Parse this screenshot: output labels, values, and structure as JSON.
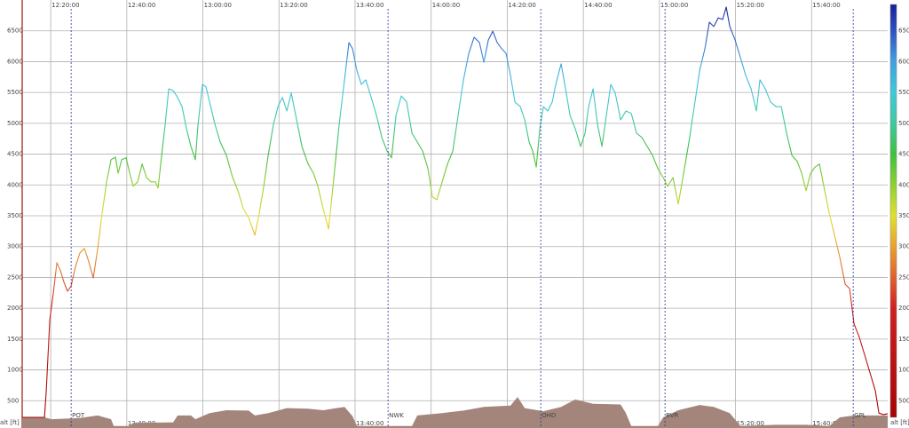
{
  "chart_data": {
    "type": "line",
    "y_label": "alt [ft]",
    "xlim": [
      "12:12:30",
      "16:00:00"
    ],
    "xticks": [
      "12:20:00",
      "12:40:00",
      "13:00:00",
      "13:20:00",
      "13:40:00",
      "14:00:00",
      "14:20:00",
      "14:40:00",
      "15:00:00",
      "15:20:00",
      "15:40:00"
    ],
    "ylim": [
      0,
      7000
    ],
    "yticks": [
      500,
      1000,
      1500,
      2000,
      2500,
      3000,
      3500,
      4000,
      4500,
      5000,
      5500,
      6000,
      6500
    ],
    "grid": true,
    "colorscale": [
      {
        "value": 0,
        "color": "#a00000"
      },
      {
        "value": 2000,
        "color": "#d02020"
      },
      {
        "value": 2600,
        "color": "#e07030"
      },
      {
        "value": 3000,
        "color": "#e8a030"
      },
      {
        "value": 3500,
        "color": "#e0e030"
      },
      {
        "value": 4000,
        "color": "#90d030"
      },
      {
        "value": 4500,
        "color": "#40c040"
      },
      {
        "value": 5000,
        "color": "#40c8a0"
      },
      {
        "value": 5500,
        "color": "#40c8d8"
      },
      {
        "value": 6000,
        "color": "#40a0e0"
      },
      {
        "value": 6500,
        "color": "#3050c0"
      },
      {
        "value": 7000,
        "color": "#101890"
      }
    ],
    "series": [
      {
        "x": [
          "12:12:30",
          "12:18:22",
          "12:18:50",
          "12:19:46",
          "12:20:42",
          "12:21:38",
          "12:22:34",
          "12:23:30",
          "12:24:26",
          "12:25:22",
          "12:26:32",
          "12:27:42",
          "12:28:52",
          "12:30:02",
          "12:31:12",
          "12:32:22",
          "12:33:32",
          "12:34:42",
          "12:35:52",
          "12:37:02",
          "12:37:44",
          "12:38:40",
          "12:39:50",
          "12:40:46",
          "12:41:42",
          "12:42:52",
          "12:44:02",
          "12:45:12",
          "12:46:22",
          "12:47:32",
          "12:48:14",
          "12:49:10",
          "12:50:06",
          "12:51:02",
          "12:52:12",
          "12:53:22",
          "12:54:32",
          "12:55:42",
          "12:56:52",
          "12:58:02",
          "12:58:44",
          "12:59:54",
          "13:00:50",
          "13:01:46",
          "13:03:10",
          "13:04:34",
          "13:06:12",
          "13:07:50",
          "13:09:14",
          "13:10:38",
          "13:12:02",
          "13:13:40",
          "13:14:50",
          "13:16:00",
          "13:17:10",
          "13:18:34",
          "13:19:44",
          "13:20:54",
          "13:22:04",
          "13:23:14",
          "13:24:24",
          "13:26:02",
          "13:27:40",
          "13:29:04",
          "13:30:14",
          "13:31:38",
          "13:33:02",
          "13:34:26",
          "13:35:50",
          "13:37:14",
          "13:38:24",
          "13:39:20",
          "13:40:30",
          "13:41:40",
          "13:42:50",
          "13:44:14",
          "13:45:38",
          "13:47:02",
          "13:48:26",
          "13:49:36",
          "13:50:46",
          "13:52:10",
          "13:53:34",
          "13:54:58",
          "13:56:22",
          "13:57:46",
          "13:59:10",
          "14:00:20",
          "14:01:30",
          "14:02:54",
          "14:04:18",
          "14:05:42",
          "14:07:06",
          "14:08:30",
          "14:09:54",
          "14:11:18",
          "14:12:42",
          "14:13:52",
          "14:15:02",
          "14:16:12",
          "14:17:22",
          "14:18:32",
          "14:19:42",
          "14:20:52",
          "14:22:02",
          "14:23:26",
          "14:24:36",
          "14:25:46",
          "14:26:42",
          "14:27:38",
          "14:28:34",
          "14:29:30",
          "14:30:40",
          "14:31:50",
          "14:32:46",
          "14:34:10",
          "14:35:20",
          "14:36:30",
          "14:37:54",
          "14:39:18",
          "14:40:28",
          "14:41:24",
          "14:42:34",
          "14:43:44",
          "14:44:54",
          "14:46:04",
          "14:47:14",
          "14:48:24",
          "14:49:48",
          "14:51:12",
          "14:52:36",
          "14:54:00",
          "14:55:24",
          "14:56:48",
          "14:58:12",
          "14:59:36",
          "15:01:00",
          "15:02:10",
          "15:03:34",
          "15:04:58",
          "15:06:22",
          "15:07:46",
          "15:09:10",
          "15:10:34",
          "15:11:58",
          "15:13:08",
          "15:14:18",
          "15:15:28",
          "15:16:38",
          "15:17:34",
          "15:18:30",
          "15:19:54",
          "15:21:18",
          "15:22:42",
          "15:24:06",
          "15:25:30",
          "15:26:26",
          "15:27:50",
          "15:29:14",
          "15:30:38",
          "15:32:02",
          "15:33:26",
          "15:34:50",
          "15:36:14",
          "15:37:24",
          "15:38:34",
          "15:39:44",
          "15:40:54",
          "15:42:04",
          "15:43:14",
          "15:44:38",
          "15:46:02",
          "15:47:26",
          "15:48:50",
          "15:50:00",
          "15:51:10",
          "15:52:34",
          "15:53:58",
          "15:55:22",
          "15:56:46",
          "15:57:42",
          "15:58:52",
          "16:00:00"
        ],
        "values": [
          230,
          230,
          660,
          1815,
          2250,
          2740,
          2610,
          2420,
          2275,
          2360,
          2680,
          2900,
          2970,
          2750,
          2490,
          2970,
          3545,
          4050,
          4410,
          4450,
          4190,
          4410,
          4440,
          4190,
          3980,
          4050,
          4340,
          4120,
          4050,
          4050,
          3950,
          4480,
          4985,
          5560,
          5530,
          5420,
          5270,
          4910,
          4625,
          4410,
          4985,
          5630,
          5590,
          5345,
          4985,
          4695,
          4480,
          4120,
          3905,
          3615,
          3470,
          3185,
          3545,
          3975,
          4480,
          4985,
          5270,
          5420,
          5200,
          5490,
          5130,
          4625,
          4340,
          4190,
          3980,
          3615,
          3285,
          4120,
          4985,
          5705,
          6310,
          6210,
          5850,
          5630,
          5705,
          5420,
          5130,
          4770,
          4550,
          4440,
          5130,
          5445,
          5345,
          4840,
          4695,
          4550,
          4265,
          3805,
          3760,
          4050,
          4340,
          4550,
          5130,
          5705,
          6135,
          6395,
          6310,
          5990,
          6350,
          6495,
          6310,
          6210,
          6135,
          5775,
          5345,
          5270,
          5055,
          4695,
          4550,
          4290,
          4910,
          5270,
          5200,
          5345,
          5630,
          5965,
          5560,
          5130,
          4910,
          4625,
          4840,
          5270,
          5560,
          4985,
          4625,
          5130,
          5630,
          5490,
          5055,
          5200,
          5160,
          4840,
          4770,
          4625,
          4480,
          4265,
          4120,
          3975,
          4120,
          3690,
          4190,
          4695,
          5270,
          5850,
          6210,
          6640,
          6570,
          6710,
          6685,
          6885,
          6570,
          6350,
          6065,
          5775,
          5560,
          5200,
          5705,
          5560,
          5345,
          5270,
          5270,
          4840,
          4480,
          4380,
          4190,
          3905,
          4190,
          4290,
          4340,
          3975,
          3545,
          3185,
          2825,
          2390,
          2320,
          1745,
          1525,
          1240,
          950,
          660,
          300,
          275,
          290
        ]
      },
      {
        "color": "#a3857b",
        "x": [
          "12:12:30",
          "12:18:22",
          "12:20:14",
          "12:27:42",
          "12:32:22",
          "12:35:52",
          "12:36:34",
          "12:40:32",
          "12:41:42",
          "12:52:12",
          "12:53:22",
          "12:56:52",
          "12:58:02",
          "13:01:46",
          "13:06:12",
          "13:12:02",
          "13:13:40",
          "13:17:10",
          "13:22:04",
          "13:27:40",
          "13:31:38",
          "13:37:14",
          "13:39:20",
          "13:40:30",
          "13:54:58",
          "13:56:22",
          "14:02:54",
          "14:08:30",
          "14:13:52",
          "14:20:52",
          "14:22:44",
          "14:24:36",
          "14:29:30",
          "14:34:10",
          "14:37:54",
          "14:42:34",
          "14:49:48",
          "14:51:12",
          "14:52:36",
          "14:59:36",
          "15:01:00",
          "15:04:58",
          "15:10:34",
          "15:14:18",
          "15:18:30",
          "15:21:18",
          "15:30:38",
          "15:38:34",
          "15:44:38",
          "15:47:26",
          "15:51:10",
          "16:00:00"
        ],
        "values": [
          230,
          230,
          200,
          220,
          260,
          200,
          90,
          90,
          140,
          150,
          260,
          260,
          200,
          300,
          345,
          340,
          260,
          300,
          380,
          370,
          345,
          400,
          250,
          90,
          90,
          260,
          300,
          340,
          400,
          420,
          560,
          380,
          330,
          400,
          520,
          450,
          440,
          300,
          90,
          90,
          230,
          345,
          430,
          400,
          300,
          90,
          110,
          110,
          90,
          230,
          260,
          260
        ]
      }
    ],
    "markers": [
      {
        "label": "POT",
        "x": "12:25:22"
      },
      {
        "label": "NWK",
        "x": "13:48:40"
      },
      {
        "label": "OHD",
        "x": "14:28:48"
      },
      {
        "label": "BVR",
        "x": "15:01:28"
      },
      {
        "label": "GPL",
        "x": "15:50:56"
      }
    ]
  }
}
